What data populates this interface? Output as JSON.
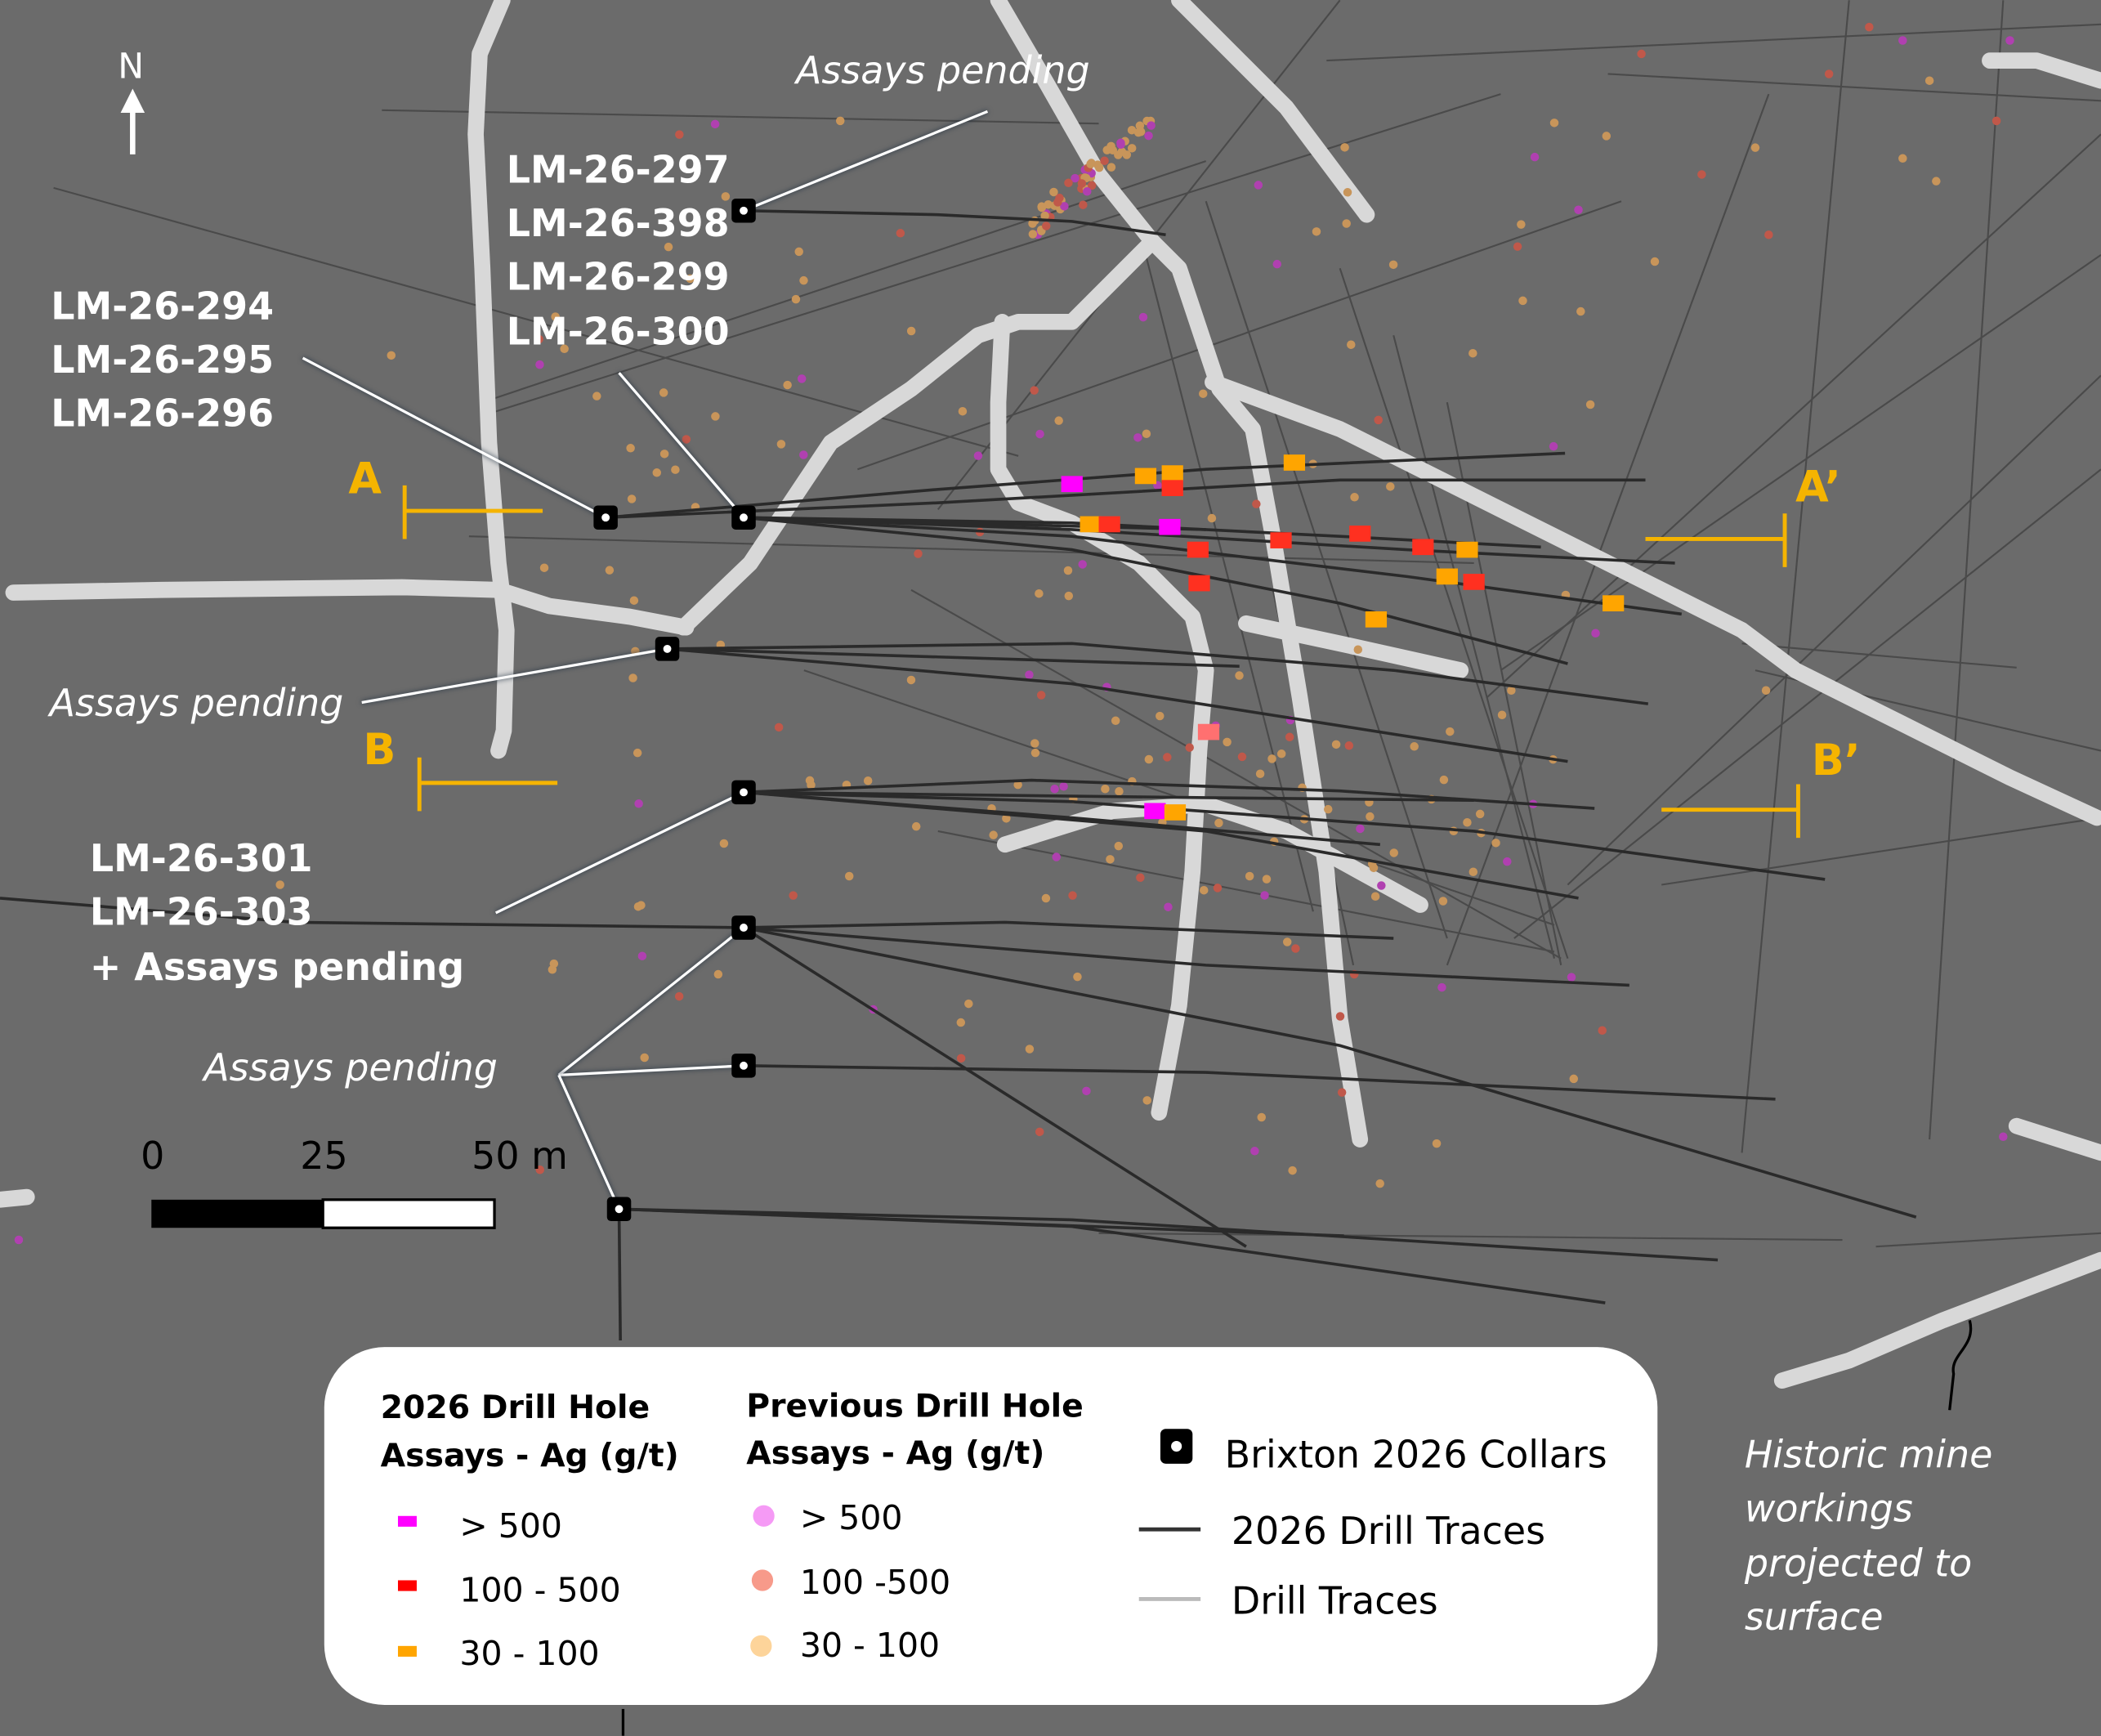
{
  "north": {
    "label": "N"
  },
  "hole_labels": [
    {
      "lines": [
        "LM-26-297",
        "LM-26-398",
        "LM-26-299",
        "LM-26-300"
      ]
    },
    {
      "lines": [
        "LM-26-294",
        "LM-26-295",
        "LM-26-296"
      ]
    },
    {
      "lines": [
        "LM-26-301",
        "LM-26-303",
        "+ Assays pending"
      ]
    }
  ],
  "pending_labels": [
    "Assays pending",
    "Assays pending",
    "Assays pending"
  ],
  "sections": {
    "a": "A",
    "a_prime": "A’",
    "b": "B",
    "b_prime": "B’"
  },
  "scale_bar": {
    "ticks": [
      "0",
      "25",
      "50 m"
    ]
  },
  "legend": {
    "col1_title": [
      "2026 Drill Hole",
      "Assays - Ag (g/t)"
    ],
    "col1_items": [
      {
        "label": "> 500",
        "color": "#ff00ff"
      },
      {
        "label": "100 - 500",
        "color": "#ff0000"
      },
      {
        "label": "30 - 100",
        "color": "#ffa500"
      }
    ],
    "col2_title": [
      "Previous Drill Hole",
      "Assays - Ag (g/t)"
    ],
    "col2_items": [
      {
        "label": "> 500",
        "color": "#f59af5"
      },
      {
        "label": "100 -500",
        "color": "#f79a8a"
      },
      {
        "label": "30 - 100",
        "color": "#fdd49a"
      }
    ],
    "symbols": [
      "Brixton 2026 Collars",
      "2026 Drill Traces",
      "Drill Traces"
    ]
  },
  "historic_note": [
    "Historic mine",
    "workings",
    "projected to",
    "surface"
  ]
}
